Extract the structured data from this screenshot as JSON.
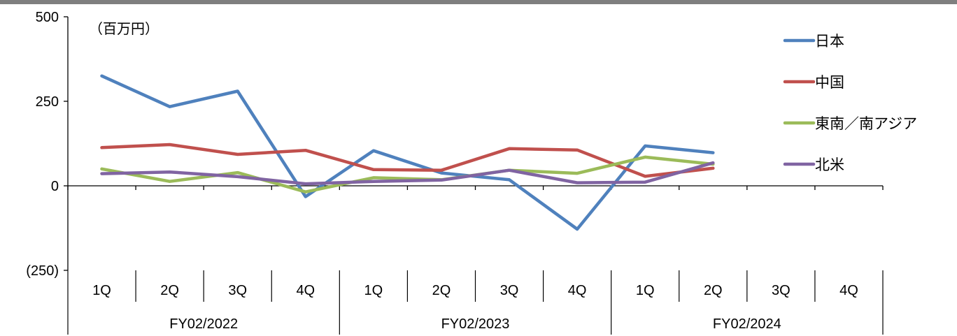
{
  "chart_data": {
    "type": "line",
    "unit_label": "（百万円）",
    "ylim": [
      -250,
      500
    ],
    "yticks": [
      {
        "value": 500,
        "label": "500"
      },
      {
        "value": 250,
        "label": "250"
      },
      {
        "value": 0,
        "label": "0"
      },
      {
        "value": -250,
        "label": "(250)"
      }
    ],
    "categories": [
      "1Q",
      "2Q",
      "3Q",
      "4Q",
      "1Q",
      "2Q",
      "3Q",
      "4Q",
      "1Q",
      "2Q",
      "3Q",
      "4Q"
    ],
    "groups": [
      {
        "label": "FY02/2022",
        "span": 4
      },
      {
        "label": "FY02/2023",
        "span": 4
      },
      {
        "label": "FY02/2024",
        "span": 4
      }
    ],
    "legend_position": "right",
    "grid": false,
    "series": [
      {
        "name": "日本",
        "color": "#4F81BD",
        "values": [
          325,
          234,
          280,
          -32,
          104,
          38,
          18,
          -128,
          118,
          98,
          null,
          null
        ]
      },
      {
        "name": "中国",
        "color": "#C0504D",
        "values": [
          113,
          122,
          93,
          105,
          48,
          46,
          110,
          106,
          28,
          52,
          null,
          null
        ]
      },
      {
        "name": "東南／南アジア",
        "color": "#9BBB59",
        "values": [
          50,
          13,
          39,
          -18,
          24,
          18,
          46,
          37,
          85,
          64,
          null,
          null
        ]
      },
      {
        "name": "北米",
        "color": "#8064A2",
        "values": [
          36,
          41,
          27,
          6,
          13,
          17,
          46,
          9,
          11,
          68,
          null,
          null
        ]
      }
    ]
  }
}
